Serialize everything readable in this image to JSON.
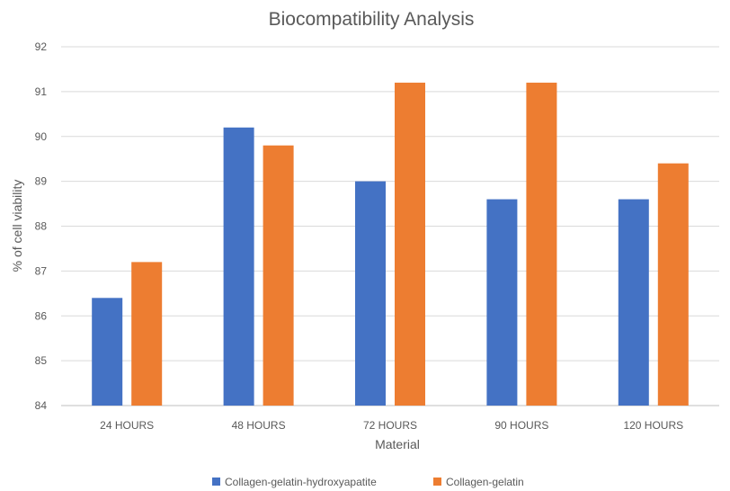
{
  "chart_data": {
    "type": "bar",
    "title": "Biocompatibility Analysis",
    "xlabel": "Material",
    "ylabel": "% of cell viability",
    "categories": [
      "24 HOURS",
      "48 HOURS",
      "72 HOURS",
      "90 HOURS",
      "120 HOURS"
    ],
    "series": [
      {
        "name": "Collagen-gelatin-hydroxyapatite",
        "color": "#4472C4",
        "values": [
          86.4,
          90.2,
          89.0,
          88.6,
          88.6
        ]
      },
      {
        "name": "Collagen-gelatin",
        "color": "#ED7D31",
        "values": [
          87.2,
          89.8,
          91.2,
          91.2,
          89.4
        ]
      }
    ],
    "ylim": [
      84,
      92
    ],
    "yticks": [
      "84",
      "85",
      "86",
      "87",
      "88",
      "89",
      "90",
      "91",
      "92"
    ],
    "grid": true,
    "legend": "bottom"
  }
}
